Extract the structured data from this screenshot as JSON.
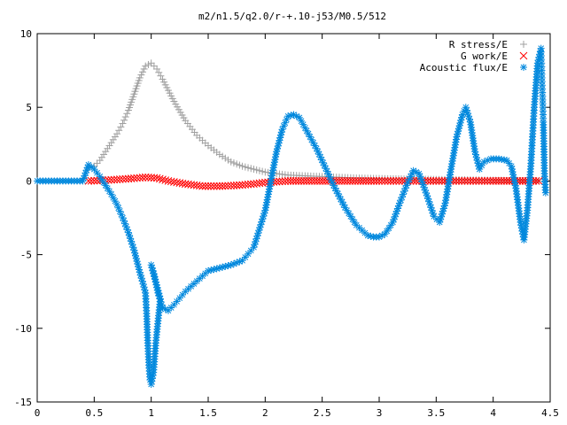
{
  "chart_data": {
    "type": "scatter",
    "title": "m2/n1.5/q2.0/r-+.10-j53/M0.5/512",
    "xlabel": "",
    "ylabel": "",
    "xlim": [
      0,
      4.5
    ],
    "ylim": [
      -15,
      10
    ],
    "xticks": [
      0,
      0.5,
      1,
      1.5,
      2,
      2.5,
      3,
      3.5,
      4,
      4.5
    ],
    "xtick_labels": [
      "0",
      "0.5",
      "1",
      "1.5",
      "2",
      "2.5",
      "3",
      "3.5",
      "4",
      "4.5"
    ],
    "yticks": [
      10,
      5,
      0,
      -5,
      -10,
      -15
    ],
    "ytick_labels": [
      "10",
      "5",
      "0",
      "-5",
      "-10",
      "-15"
    ],
    "grid": false,
    "legend_position": "top-right",
    "series": [
      {
        "name": "R stress/E",
        "marker": "plus",
        "color": "#a0a0a0",
        "points": [
          [
            0.45,
            0.9
          ],
          [
            0.5,
            1.0
          ],
          [
            0.55,
            1.4
          ],
          [
            0.6,
            2.0
          ],
          [
            0.65,
            2.6
          ],
          [
            0.7,
            3.2
          ],
          [
            0.75,
            3.9
          ],
          [
            0.8,
            4.8
          ],
          [
            0.85,
            5.9
          ],
          [
            0.9,
            7.0
          ],
          [
            0.95,
            7.8
          ],
          [
            1.0,
            8.0
          ],
          [
            1.05,
            7.6
          ],
          [
            1.1,
            6.9
          ],
          [
            1.2,
            5.4
          ],
          [
            1.3,
            4.1
          ],
          [
            1.4,
            3.1
          ],
          [
            1.5,
            2.4
          ],
          [
            1.6,
            1.8
          ],
          [
            1.7,
            1.3
          ],
          [
            1.8,
            1.0
          ],
          [
            1.9,
            0.8
          ],
          [
            2.0,
            0.6
          ],
          [
            2.2,
            0.4
          ],
          [
            2.5,
            0.3
          ],
          [
            2.8,
            0.2
          ],
          [
            3.1,
            0.15
          ],
          [
            3.5,
            0.1
          ],
          [
            4.0,
            0.05
          ],
          [
            4.4,
            0.0
          ]
        ]
      },
      {
        "name": "G work/E",
        "marker": "cross",
        "color": "#ff0000",
        "points": [
          [
            0.45,
            0.0
          ],
          [
            0.6,
            0.05
          ],
          [
            0.8,
            0.15
          ],
          [
            0.95,
            0.25
          ],
          [
            1.05,
            0.2
          ],
          [
            1.15,
            0.0
          ],
          [
            1.3,
            -0.2
          ],
          [
            1.45,
            -0.35
          ],
          [
            1.6,
            -0.35
          ],
          [
            1.75,
            -0.3
          ],
          [
            1.9,
            -0.2
          ],
          [
            2.0,
            -0.1
          ],
          [
            2.2,
            0.0
          ],
          [
            2.6,
            0.0
          ],
          [
            3.0,
            0.0
          ],
          [
            3.5,
            0.0
          ],
          [
            4.0,
            0.0
          ],
          [
            4.4,
            0.0
          ]
        ]
      },
      {
        "name": "Acoustic flux/E",
        "marker": "star",
        "color": "#0088dd",
        "points": [
          [
            0.0,
            0.0
          ],
          [
            0.1,
            0.0
          ],
          [
            0.2,
            0.0
          ],
          [
            0.3,
            0.0
          ],
          [
            0.4,
            0.0
          ],
          [
            0.45,
            1.1
          ],
          [
            0.5,
            0.8
          ],
          [
            0.55,
            0.3
          ],
          [
            0.6,
            -0.3
          ],
          [
            0.65,
            -0.9
          ],
          [
            0.7,
            -1.6
          ],
          [
            0.75,
            -2.5
          ],
          [
            0.8,
            -3.5
          ],
          [
            0.85,
            -4.7
          ],
          [
            0.9,
            -6.2
          ],
          [
            0.93,
            -7.0
          ],
          [
            0.95,
            -7.6
          ],
          [
            0.96,
            -9.0
          ],
          [
            0.97,
            -11.0
          ],
          [
            0.98,
            -12.5
          ],
          [
            0.99,
            -13.5
          ],
          [
            1.0,
            -13.8
          ],
          [
            1.02,
            -13.0
          ],
          [
            1.04,
            -11.0
          ],
          [
            1.06,
            -9.5
          ],
          [
            1.08,
            -8.0
          ],
          [
            1.0,
            -5.7
          ],
          [
            1.03,
            -6.5
          ],
          [
            1.06,
            -7.6
          ],
          [
            1.1,
            -8.6
          ],
          [
            1.15,
            -8.8
          ],
          [
            1.2,
            -8.4
          ],
          [
            1.3,
            -7.5
          ],
          [
            1.4,
            -6.8
          ],
          [
            1.5,
            -6.1
          ],
          [
            1.6,
            -5.9
          ],
          [
            1.7,
            -5.7
          ],
          [
            1.8,
            -5.4
          ],
          [
            1.9,
            -4.5
          ],
          [
            2.0,
            -2.0
          ],
          [
            2.05,
            0.0
          ],
          [
            2.1,
            2.0
          ],
          [
            2.15,
            3.5
          ],
          [
            2.2,
            4.4
          ],
          [
            2.25,
            4.5
          ],
          [
            2.3,
            4.3
          ],
          [
            2.35,
            3.6
          ],
          [
            2.45,
            2.2
          ],
          [
            2.6,
            -0.3
          ],
          [
            2.7,
            -1.8
          ],
          [
            2.8,
            -3.0
          ],
          [
            2.9,
            -3.7
          ],
          [
            2.95,
            -3.8
          ],
          [
            3.0,
            -3.8
          ],
          [
            3.05,
            -3.6
          ],
          [
            3.12,
            -2.8
          ],
          [
            3.18,
            -1.5
          ],
          [
            3.24,
            -0.3
          ],
          [
            3.3,
            0.7
          ],
          [
            3.35,
            0.5
          ],
          [
            3.42,
            -1.0
          ],
          [
            3.48,
            -2.4
          ],
          [
            3.53,
            -2.8
          ],
          [
            3.58,
            -1.5
          ],
          [
            3.63,
            0.8
          ],
          [
            3.68,
            3.0
          ],
          [
            3.73,
            4.5
          ],
          [
            3.76,
            5.0
          ],
          [
            3.8,
            4.0
          ],
          [
            3.84,
            2.0
          ],
          [
            3.88,
            0.8
          ],
          [
            3.92,
            1.3
          ],
          [
            3.98,
            1.5
          ],
          [
            4.05,
            1.5
          ],
          [
            4.12,
            1.4
          ],
          [
            4.16,
            1.0
          ],
          [
            4.2,
            -0.5
          ],
          [
            4.24,
            -2.8
          ],
          [
            4.27,
            -4.0
          ],
          [
            4.3,
            -2.0
          ],
          [
            4.33,
            1.0
          ],
          [
            4.36,
            5.0
          ],
          [
            4.39,
            8.0
          ],
          [
            4.42,
            9.0
          ],
          [
            4.44,
            4.0
          ],
          [
            4.45,
            0.5
          ],
          [
            4.46,
            -0.8
          ]
        ]
      }
    ]
  }
}
